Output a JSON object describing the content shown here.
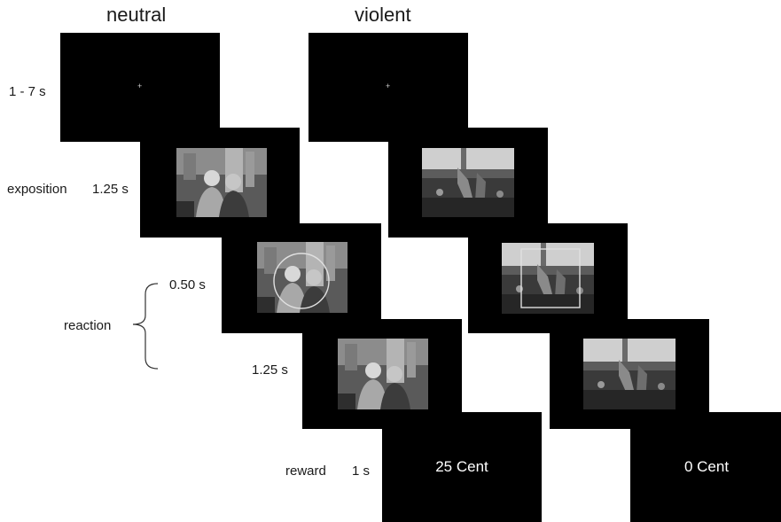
{
  "columns": {
    "neutral": "neutral",
    "violent": "violent"
  },
  "rows": {
    "fixation_time": "1 - 7 s",
    "exposition_label": "exposition",
    "exposition_time": "1.25 s",
    "reaction_label": "reaction",
    "reaction_time_1": "0.50 s",
    "reaction_time_2": "1.25 s",
    "reward_label": "reward",
    "reward_time": "1 s"
  },
  "fixation_symbol": "+",
  "rewards": {
    "neutral": "25 Cent",
    "violent": "0 Cent"
  },
  "highlight_shapes": {
    "neutral": "circle",
    "violent": "square"
  },
  "colors": {
    "screen": "#000000",
    "text": "#1a1a1a",
    "highlight": "#e0e0e0"
  }
}
